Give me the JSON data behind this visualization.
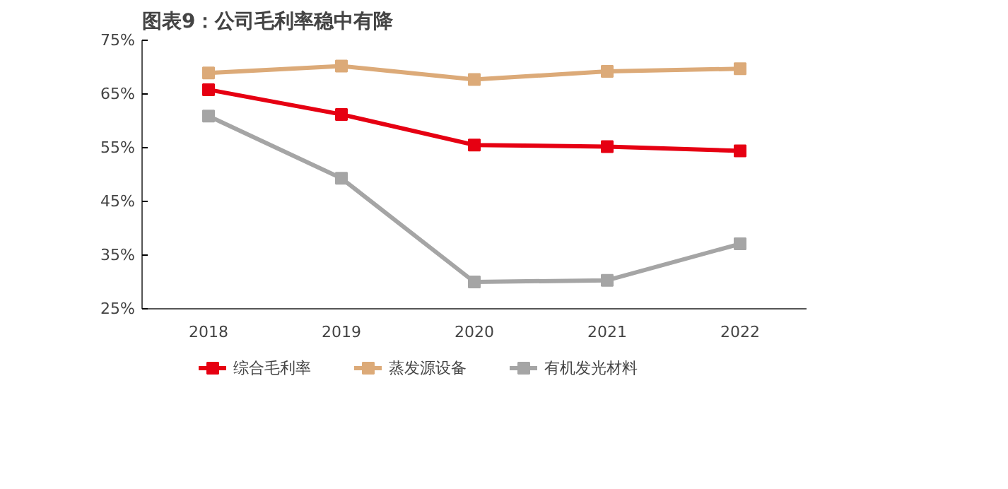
{
  "chart_data": {
    "type": "line",
    "title": "图表9：公司毛利率稳中有降",
    "categories": [
      "2018",
      "2019",
      "2020",
      "2021",
      "2022"
    ],
    "series": [
      {
        "name": "综合毛利率",
        "color": "#e60012",
        "values": [
          65.8,
          61.2,
          55.5,
          55.2,
          54.4
        ]
      },
      {
        "name": "蒸发源设备",
        "color": "#dcaa78",
        "values": [
          68.9,
          70.2,
          67.7,
          69.2,
          69.7
        ]
      },
      {
        "name": "有机发光材料",
        "color": "#a5a5a5",
        "values": [
          60.9,
          49.3,
          30.0,
          30.3,
          37.1
        ]
      }
    ],
    "ylim": [
      25,
      75
    ],
    "yticks": [
      {
        "value": 25,
        "label": "25%"
      },
      {
        "value": 35,
        "label": "35%"
      },
      {
        "value": 45,
        "label": "45%"
      },
      {
        "value": 55,
        "label": "55%"
      },
      {
        "value": 65,
        "label": "65%"
      },
      {
        "value": 75,
        "label": "75%"
      }
    ],
    "grid": false,
    "legend": "bottom",
    "marker": "square",
    "line_style": "solid"
  }
}
